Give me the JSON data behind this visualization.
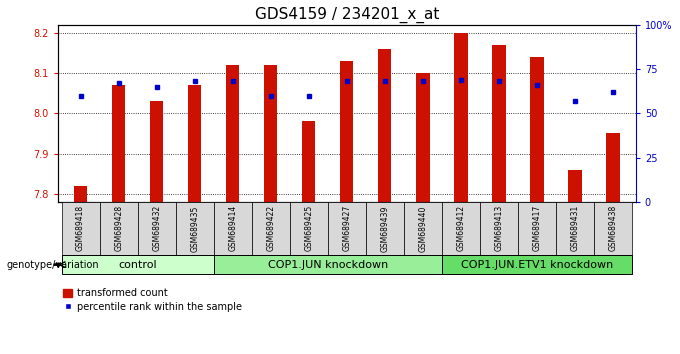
{
  "title": "GDS4159 / 234201_x_at",
  "samples": [
    "GSM689418",
    "GSM689428",
    "GSM689432",
    "GSM689435",
    "GSM689414",
    "GSM689422",
    "GSM689425",
    "GSM689427",
    "GSM689439",
    "GSM689440",
    "GSM689412",
    "GSM689413",
    "GSM689417",
    "GSM689431",
    "GSM689438"
  ],
  "transformed_count": [
    7.82,
    8.07,
    8.03,
    8.07,
    8.12,
    8.12,
    7.98,
    8.13,
    8.16,
    8.1,
    8.2,
    8.17,
    8.14,
    7.86,
    7.95
  ],
  "percentile_rank": [
    60,
    67,
    65,
    68,
    68,
    60,
    60,
    68,
    68,
    68,
    69,
    68,
    66,
    57,
    62
  ],
  "ylim_left": [
    7.78,
    8.22
  ],
  "ylim_right": [
    0,
    100
  ],
  "yticks_left": [
    7.8,
    7.9,
    8.0,
    8.1,
    8.2
  ],
  "yticks_right": [
    0,
    25,
    50,
    75,
    100
  ],
  "ytick_labels_right": [
    "0",
    "25",
    "50",
    "75",
    "100%"
  ],
  "groups": [
    {
      "label": "control",
      "start": 0,
      "end": 4,
      "color": "#ccffcc"
    },
    {
      "label": "COP1.JUN knockdown",
      "start": 4,
      "end": 10,
      "color": "#99ee99"
    },
    {
      "label": "COP1.JUN.ETV1 knockdown",
      "start": 10,
      "end": 15,
      "color": "#66dd66"
    }
  ],
  "bar_color": "#cc1100",
  "percentile_color": "#0000cc",
  "bar_width": 0.35,
  "baseline": 7.78,
  "legend_labels": [
    "transformed count",
    "percentile rank within the sample"
  ],
  "genotype_label": "genotype/variation",
  "left_axis_color": "#cc1100",
  "right_axis_color": "#0000cc",
  "tick_label_size": 7,
  "group_label_size": 8,
  "title_fontsize": 11,
  "plot_bg": "#ffffff",
  "fig_bg": "#ffffff"
}
